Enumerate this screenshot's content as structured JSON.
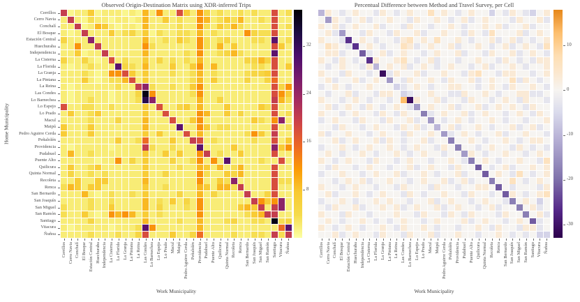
{
  "figure": {
    "background": "#ffffff",
    "ylabel": "Home Municipality",
    "text_color": "#3f3f3f"
  },
  "municipalities": [
    "Cerrillos",
    "Cerro Navia",
    "Conchalí",
    "El Bosque",
    "Estación Central",
    "Huechuraba",
    "Independencia",
    "La Cisterna",
    "La Florida",
    "La Granja",
    "La Pintana",
    "La Reina",
    "Las Condes",
    "Lo Barnechea",
    "Lo Espejo",
    "Lo Prado",
    "Macul",
    "Maipú",
    "Pedro Aguirre Cerda",
    "Peñalolén",
    "Providencia",
    "Pudahuel",
    "Puente Alto",
    "Quilicura",
    "Quinta Normal",
    "Recoleta",
    "Renca",
    "San Bernardo",
    "San Joaquín",
    "San Miguel",
    "San Ramón",
    "Santiago",
    "Vitacura",
    "Ñuñoa"
  ],
  "chart_data": [
    {
      "type": "heatmap",
      "title": "Observed Origin-Destination Matrix using XDR-inferred Trips",
      "xlabel": "Work Municipality",
      "ylabel": "Home Municipality",
      "colormap": "inferno_reversed",
      "vmin": 0,
      "vmax": 38,
      "colorbar_ticks": [
        {
          "label": "32",
          "value": 32
        },
        {
          "label": "24",
          "value": 24
        },
        {
          "label": "16",
          "value": 16
        },
        {
          "label": "8",
          "value": 8
        }
      ],
      "cmap_stops": [
        [
          0,
          "#fcffa4"
        ],
        [
          0.1,
          "#f5db4c"
        ],
        [
          0.2,
          "#f8c932"
        ],
        [
          0.3,
          "#fb9b06"
        ],
        [
          0.4,
          "#ed6925"
        ],
        [
          0.5,
          "#cf4446"
        ],
        [
          0.6,
          "#a52c60"
        ],
        [
          0.7,
          "#781c6d"
        ],
        [
          0.8,
          "#4a0c6b"
        ],
        [
          0.9,
          "#1b0c41"
        ],
        [
          1,
          "#000004"
        ]
      ],
      "value_map": {
        "0": 1,
        "1": 2,
        "2": 3.5,
        "3": 5,
        "4": 7,
        "5": 9,
        "6": 12,
        "7": 15,
        "8": 18,
        "9": 20,
        "a": 25,
        "b": 29,
        "c": 33,
        "d": 37
      },
      "matrix": [
        "9011401110105161184163121121211812",
        "1910211011015114121165124251121811",
        "1190154101105111121162142521111812",
        "1019111412314021122151211116322811",
        "3111a11111115112142162123111221b12",
        "1161191111116211111162151411111841",
        "1140119111115111112161123521111b11",
        "3113101812114131212151111113353811",
        "10112111b3215111411461511111221814",
        "1112101668414111211251211112334811",
        "1114101225814111111251411113113711",
        "101111112119a211211461111111111836",
        "101111101113d611111261111111111864",
        "101121101112ca11111151131111111952",
        "8112211211114181134151114111142811",
        "1411241111114118111165114131111812",
        "11112111311151118114611111114216a1",
        "41114111111151111b11641221111118126",
        "4111411111114141118151111112641911",
        "1111111141127111411981211111211814",
        "10111110111192112111b1111411111a46",
        "1511211111114114141169121141111811",
        "111110116131411131126161b11112118122",
        "1411241111114111121154151251111811",
        "13112121111141131111621143511118111",
        "1141144111115111111161142a11111822",
        "2541441111114112111154155291111811",
        "11151012112141111311513111191138111",
        "11112112111151214131611111119646a14",
        "21112114111151311121611111454919a12",
        "2114101656514121111161111112459911",
        "1111311111115111121151112311221d23",
        "101111101112b61111115111111111117b3",
        "1111211121138111411371111211221929"
      ]
    },
    {
      "type": "heatmap",
      "title": "Percentual Difference between Method and Travel Survey, per Cell",
      "xlabel": "Work Municipality",
      "ylabel": "",
      "colormap": "purple_orange_diverging",
      "vmin": -33,
      "vmax": 18,
      "colorbar_ticks": [
        {
          "label": "10",
          "value": 10
        },
        {
          "label": "0",
          "value": 0
        },
        {
          "label": "-10",
          "value": -10
        },
        {
          "label": "-20",
          "value": -20
        },
        {
          "label": "-30",
          "value": -30
        }
      ],
      "cmap_stops": [
        [
          0,
          "#2d004b"
        ],
        [
          0.12,
          "#542788"
        ],
        [
          0.26,
          "#8073ac"
        ],
        [
          0.42,
          "#b2abd2"
        ],
        [
          0.55,
          "#dadbec"
        ],
        [
          0.647,
          "#f6f4f1"
        ],
        [
          0.72,
          "#fbe8d0"
        ],
        [
          0.8,
          "#fedeb2"
        ],
        [
          0.9,
          "#fdbe6d"
        ],
        [
          1,
          "#e6871a"
        ]
      ],
      "value_map": {
        "0": 0,
        "1": 3,
        "2": 6,
        "3": 9,
        "4": 13,
        "5": -3,
        "6": -6,
        "7": -10,
        "8": -14,
        "9": -18,
        "a": -22,
        "b": -26,
        "c": -31
      },
      "matrix": [
        "7105010051050100201050100605105601",
        "0810501500100510010501501000510015",
        "1015010015005100500105001015001500",
        "0158005100510015001005105200015010",
        "1005b010500512010200105001501505 01",
        "02105b0105002150100150010501501052",
        "011500a50150100501001500510015 0105",
        "1051050b10012050150050010051050511",
        "0501005170101501050100501500105001",
        "100510050c510015001005120051100501",
        "0150015010805100105100150100251050",
        "5010500100065010500110050105100105",
        "0500150051106500100551001050011550",
        "1005010500504c1001500510050105 1005",
        "0150105105010580100150015010105100",
        "1005010051051009501001501005010510",
        "5010051005100150805010500105005001",
        "0051005010051015070150010500150150",
        "1500100501005100108501050015001005",
        "0015010015105001500900105001050110",
        "5001050100105010051090050100510505",
        "0105001050010501005008105001005010",
        "1050100510050100500105901050010052",
        "05100501005001501005100a0501500101",
        "500100501001500105001500a010520501",
        "0050101500100501001501500900205010",
        "10050100500510005100500110a0500051",
        "01500105010051050010051005 0a105012",
        "5001050010100500150100501005901060",
        "0510015001015010015010050150090150",
        "1005100500010051005105100051009015",
        "010500105050100501000150100501 0a50",
        "1050105001051001050050010510051150",
        "0015010051005100150010050010505066"
      ]
    }
  ]
}
